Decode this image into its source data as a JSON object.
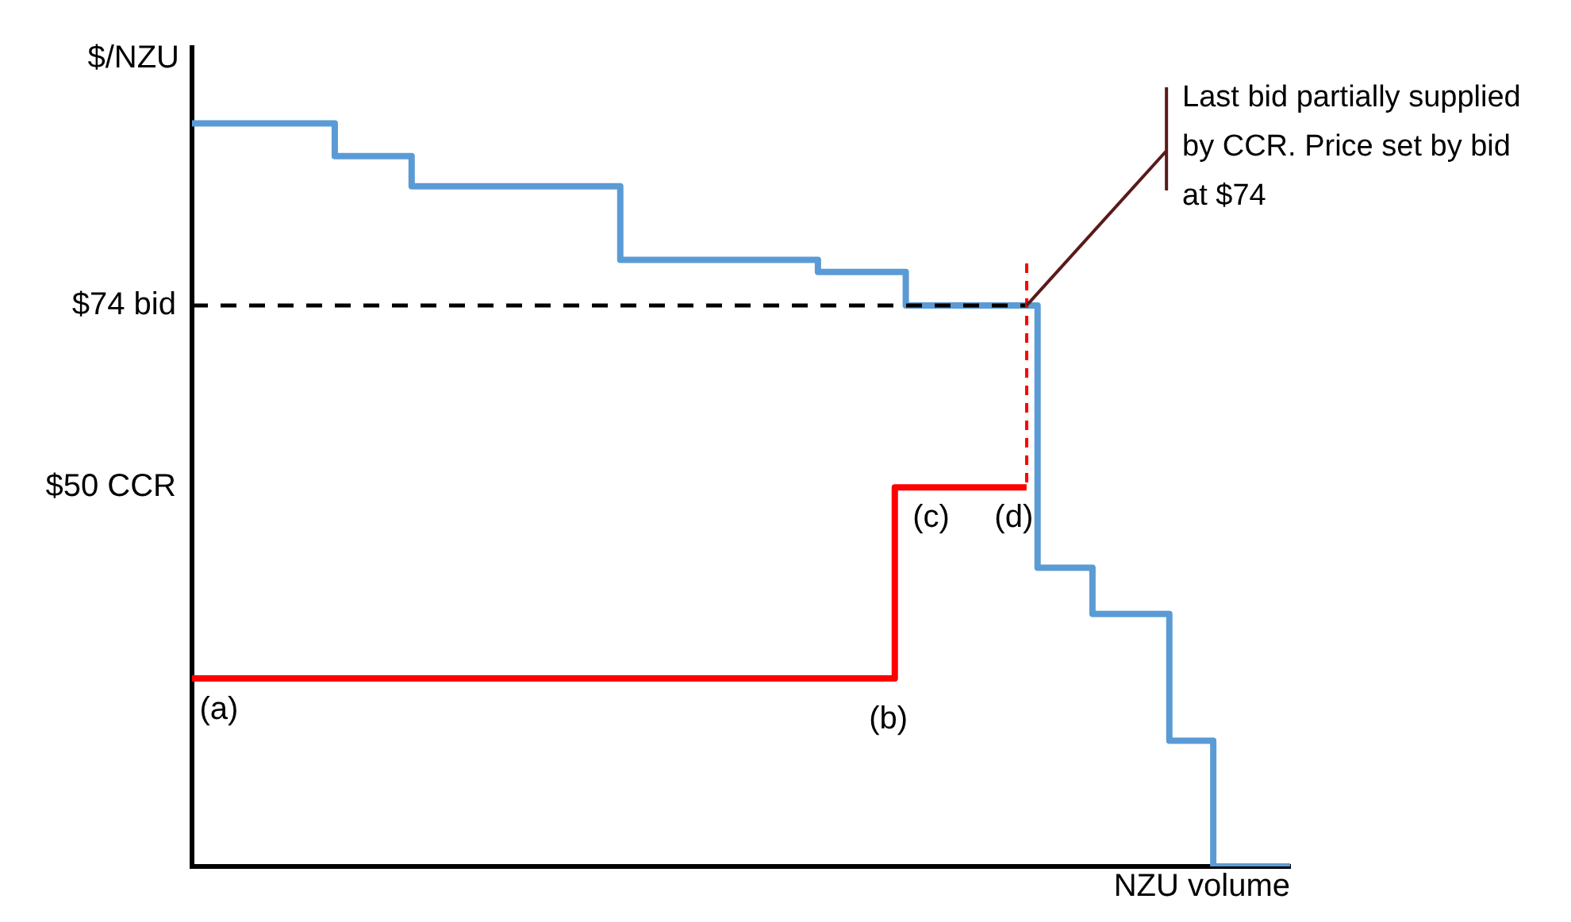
{
  "chart_data": {
    "type": "step",
    "ylabel": "$/NZU",
    "xlabel": "NZU volume",
    "ylim": [
      0,
      108
    ],
    "categories": [
      null,
      null,
      null,
      null,
      null,
      null,
      null,
      null,
      null,
      null,
      null,
      null,
      null,
      null,
      null,
      null,
      null,
      null,
      null,
      null,
      null,
      null,
      null,
      null,
      null,
      null,
      null,
      null,
      null,
      null,
      null,
      null,
      null,
      null,
      null,
      null,
      null,
      null,
      null,
      null,
      null,
      null,
      null,
      null,
      null,
      null,
      null,
      null,
      null,
      null,
      null,
      null,
      null,
      null,
      null,
      null,
      null,
      null,
      null,
      null,
      null,
      null,
      null,
      null,
      null,
      null,
      null,
      null,
      null,
      null,
      null,
      null,
      null,
      null,
      null,
      null,
      null,
      null,
      null,
      null,
      null,
      null,
      null,
      null,
      null,
      null,
      null,
      null,
      null,
      null,
      null,
      null,
      null,
      null,
      null,
      null,
      null,
      null,
      null,
      null,
      null
    ],
    "yticks": [
      {
        "value": 74,
        "label": "$74 bid"
      },
      {
        "value": 50,
        "label": "$50 CCR"
      }
    ],
    "tick_labels": "y",
    "grid": false,
    "legend": false,
    "series": [
      {
        "type": "line",
        "color": "#000000",
        "line_style": "dashed",
        "values": [
          74,
          74,
          74,
          74,
          74,
          74,
          74,
          74,
          74,
          74,
          74,
          74,
          74,
          74,
          74,
          74,
          74,
          74,
          74,
          74,
          74,
          74,
          74,
          74,
          74,
          74,
          74,
          74,
          74,
          74,
          74,
          74,
          74,
          74,
          74,
          74,
          74,
          74,
          74,
          74,
          74,
          74,
          74,
          74,
          74,
          74,
          74,
          74,
          74,
          74,
          74,
          74,
          74,
          74,
          74,
          74,
          74,
          74,
          74,
          74,
          74,
          74,
          74,
          74,
          74,
          74,
          74,
          74,
          74,
          74,
          74,
          74,
          74,
          74,
          74,
          74,
          74,
          null,
          null,
          null,
          null,
          null,
          null,
          null,
          null,
          null,
          null,
          null,
          null,
          null,
          null,
          null,
          null,
          null,
          null,
          null,
          null,
          null,
          null,
          null,
          null
        ]
      },
      {
        "type": "step",
        "color": "#5b9bd5",
        "values": [
          98,
          98,
          98,
          98,
          98,
          98,
          98,
          98,
          98,
          98,
          98,
          98,
          98,
          98,
          93.7,
          93.7,
          93.7,
          93.7,
          93.7,
          93.7,
          93.7,
          89.7,
          89.7,
          89.7,
          89.7,
          89.7,
          89.7,
          89.7,
          89.7,
          89.7,
          89.7,
          89.7,
          89.7,
          89.7,
          89.7,
          89.7,
          89.7,
          89.7,
          89.7,
          89.7,
          80,
          80,
          80,
          80,
          80,
          80,
          80,
          80,
          80,
          80,
          80,
          80,
          80,
          80,
          80,
          80,
          80,
          80,
          78.4,
          78.4,
          78.4,
          78.4,
          78.4,
          78.4,
          78.4,
          78.4,
          74,
          74,
          74,
          74,
          74,
          74,
          74,
          74,
          74,
          74,
          74,
          74,
          39.4,
          39.4,
          39.4,
          39.4,
          39.4,
          33.3,
          33.3,
          33.3,
          33.3,
          33.3,
          33.3,
          33.3,
          16.6,
          16.6,
          16.6,
          16.6,
          0,
          0,
          0,
          0,
          0,
          0,
          0
        ]
      },
      {
        "type": "step",
        "color": "#ff0000",
        "values": [
          24.8,
          24.8,
          24.8,
          24.8,
          24.8,
          24.8,
          24.8,
          24.8,
          24.8,
          24.8,
          24.8,
          24.8,
          24.8,
          24.8,
          24.8,
          24.8,
          24.8,
          24.8,
          24.8,
          24.8,
          24.8,
          24.8,
          24.8,
          24.8,
          24.8,
          24.8,
          24.8,
          24.8,
          24.8,
          24.8,
          24.8,
          24.8,
          24.8,
          24.8,
          24.8,
          24.8,
          24.8,
          24.8,
          24.8,
          24.8,
          24.8,
          24.8,
          24.8,
          24.8,
          24.8,
          24.8,
          24.8,
          24.8,
          24.8,
          24.8,
          24.8,
          24.8,
          24.8,
          24.8,
          24.8,
          24.8,
          24.8,
          24.8,
          24.8,
          24.8,
          24.8,
          24.8,
          24.8,
          24.8,
          24.8,
          50,
          50,
          50,
          50,
          50,
          50,
          50,
          50,
          50,
          50,
          50,
          50,
          null,
          null,
          null,
          null,
          null,
          null,
          null,
          null,
          null,
          null,
          null,
          null,
          null,
          null,
          null,
          null,
          null,
          null,
          null,
          null,
          null,
          null,
          null,
          null
        ]
      }
    ],
    "annotations": [
      "Last bid partially supplied by CCR. Price set by bid at $74",
      "(a)",
      "(b)",
      "(c)",
      "(d)"
    ]
  }
}
